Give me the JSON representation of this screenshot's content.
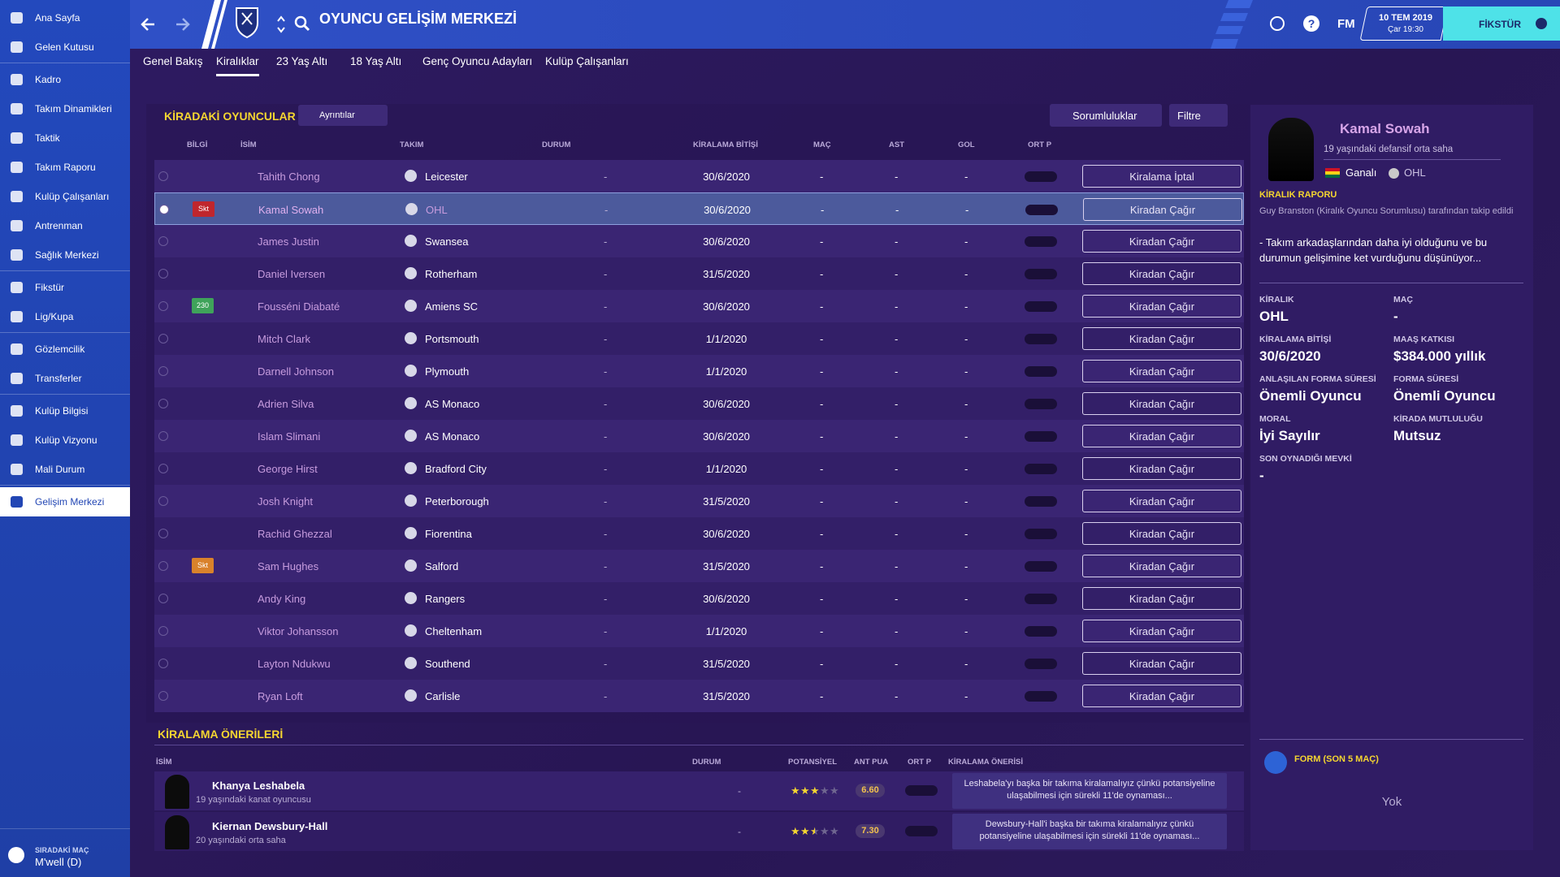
{
  "sidebar": {
    "groups": [
      [
        "Ana Sayfa",
        "Gelen Kutusu"
      ],
      [
        "Kadro",
        "Takım Dinamikleri",
        "Taktik",
        "Takım Raporu",
        "Kulüp Çalışanları",
        "Antrenman",
        "Sağlık Merkezi"
      ],
      [
        "Fikstür",
        "Lig/Kupa"
      ],
      [
        "Gözlemcilik",
        "Transferler"
      ],
      [
        "Kulüp Bilgisi",
        "Kulüp Vizyonu",
        "Mali Durum"
      ],
      [
        "Gelişim Merkezi"
      ]
    ],
    "next_match_label": "SIRADAKİ MAÇ",
    "next_match": "M'well (D)"
  },
  "topbar": {
    "title": "OYUNCU GELİŞİM MERKEZİ",
    "logo": "FM",
    "date": "10 TEM 2019",
    "time": "Çar 19:30",
    "button": "FİKSTÜR"
  },
  "tabs": [
    "Genel Bakış",
    "Kiralıklar",
    "23 Yaş Altı",
    "18 Yaş Altı",
    "Genç Oyuncu Adayları",
    "Kulüp Çalışanları"
  ],
  "loans": {
    "title": "KİRADAKİ OYUNCULAR",
    "details_button": "Ayrıntılar",
    "responsibilities_button": "Sorumluluklar",
    "filter_button": "Filtre",
    "columns": [
      "BİLGİ",
      "İSİM",
      "TAKIM",
      "DURUM",
      "KİRALAMA BİTİŞİ",
      "MAÇ",
      "AST",
      "GOL",
      "ORT P"
    ],
    "rows": [
      {
        "name": "Tahith Chong",
        "team": "Leicester",
        "status": "-",
        "end": "30/6/2020",
        "apps": "-",
        "assists": "-",
        "goals": "-",
        "action": "Kiralama İptal"
      },
      {
        "badge": "Skt",
        "badge_color": "#c0262d",
        "selected": true,
        "name": "Kamal Sowah",
        "team": "OHL",
        "status": "-",
        "end": "30/6/2020",
        "apps": "-",
        "assists": "-",
        "goals": "-",
        "action": "Kiradan Çağır"
      },
      {
        "name": "James Justin",
        "team": "Swansea",
        "status": "-",
        "end": "30/6/2020",
        "apps": "-",
        "assists": "-",
        "goals": "-",
        "action": "Kiradan Çağır"
      },
      {
        "name": "Daniel Iversen",
        "team": "Rotherham",
        "status": "-",
        "end": "31/5/2020",
        "apps": "-",
        "assists": "-",
        "goals": "-",
        "action": "Kiradan Çağır"
      },
      {
        "badge": "230",
        "badge_color": "#3fa35a",
        "name": "Fousséni Diabaté",
        "team": "Amiens SC",
        "status": "-",
        "end": "30/6/2020",
        "apps": "-",
        "assists": "-",
        "goals": "-",
        "action": "Kiradan Çağır"
      },
      {
        "name": "Mitch Clark",
        "team": "Portsmouth",
        "status": "-",
        "end": "1/1/2020",
        "apps": "-",
        "assists": "-",
        "goals": "-",
        "action": "Kiradan Çağır"
      },
      {
        "name": "Darnell Johnson",
        "team": "Plymouth",
        "status": "-",
        "end": "1/1/2020",
        "apps": "-",
        "assists": "-",
        "goals": "-",
        "action": "Kiradan Çağır"
      },
      {
        "name": "Adrien Silva",
        "team": "AS Monaco",
        "status": "-",
        "end": "30/6/2020",
        "apps": "-",
        "assists": "-",
        "goals": "-",
        "action": "Kiradan Çağır"
      },
      {
        "name": "Islam Slimani",
        "team": "AS Monaco",
        "status": "-",
        "end": "30/6/2020",
        "apps": "-",
        "assists": "-",
        "goals": "-",
        "action": "Kiradan Çağır"
      },
      {
        "name": "George Hirst",
        "team": "Bradford City",
        "status": "-",
        "end": "1/1/2020",
        "apps": "-",
        "assists": "-",
        "goals": "-",
        "action": "Kiradan Çağır"
      },
      {
        "name": "Josh Knight",
        "team": "Peterborough",
        "status": "-",
        "end": "31/5/2020",
        "apps": "-",
        "assists": "-",
        "goals": "-",
        "action": "Kiradan Çağır"
      },
      {
        "name": "Rachid Ghezzal",
        "team": "Fiorentina",
        "status": "-",
        "end": "30/6/2020",
        "apps": "-",
        "assists": "-",
        "goals": "-",
        "action": "Kiradan Çağır"
      },
      {
        "badge": "Skt",
        "badge_color": "#d9822b",
        "name": "Sam Hughes",
        "team": "Salford",
        "status": "-",
        "end": "31/5/2020",
        "apps": "-",
        "assists": "-",
        "goals": "-",
        "action": "Kiradan Çağır"
      },
      {
        "name": "Andy King",
        "team": "Rangers",
        "status": "-",
        "end": "30/6/2020",
        "apps": "-",
        "assists": "-",
        "goals": "-",
        "action": "Kiradan Çağır"
      },
      {
        "name": "Viktor Johansson",
        "team": "Cheltenham",
        "status": "-",
        "end": "1/1/2020",
        "apps": "-",
        "assists": "-",
        "goals": "-",
        "action": "Kiradan Çağır"
      },
      {
        "name": "Layton Ndukwu",
        "team": "Southend",
        "status": "-",
        "end": "31/5/2020",
        "apps": "-",
        "assists": "-",
        "goals": "-",
        "action": "Kiradan Çağır"
      },
      {
        "name": "Ryan Loft",
        "team": "Carlisle",
        "status": "-",
        "end": "31/5/2020",
        "apps": "-",
        "assists": "-",
        "goals": "-",
        "action": "Kiradan Çağır"
      }
    ]
  },
  "recommendations": {
    "title": "KİRALAMA ÖNERİLERİ",
    "columns": [
      "İSİM",
      "DURUM",
      "POTANSİYEL",
      "ANT PUA",
      "ORT P",
      "KİRALAMA ÖNERİSİ"
    ],
    "rows": [
      {
        "name": "Khanya Leshabela",
        "description": "19 yaşındaki kanat oyuncusu",
        "status": "-",
        "potential_stars": 3,
        "rating": "6.60",
        "suggestion": "Leshabela'yı başka bir takıma kiralamalıyız çünkü potansiyeline ulaşabilmesi için sürekli 11'de oynaması..."
      },
      {
        "name": "Kiernan Dewsbury-Hall",
        "description": "20 yaşındaki orta saha",
        "status": "-",
        "potential_stars": 2.5,
        "rating": "7.30",
        "suggestion": "Dewsbury-Hall'i başka bir takıma kiralamalıyız çünkü potansiyeline ulaşabilmesi için sürekli 11'de oynaması..."
      }
    ]
  },
  "player_panel": {
    "name": "Kamal Sowah",
    "subtitle": "19 yaşındaki defansif orta saha",
    "nationality": "Ganalı",
    "club": "OHL",
    "report_title": "KİRALIK RAPORU",
    "report_author": "Guy Branston (Kiralık Oyuncu Sorumlusu) tarafından takip edildi",
    "report_text": "- Takım arkadaşlarından daha iyi olduğunu ve bu durumun gelişimine ket vurduğunu düşünüyor...",
    "fields": [
      {
        "label": "KİRALIK",
        "value": "OHL"
      },
      {
        "label": "MAÇ",
        "value": "-"
      },
      {
        "label": "KİRALAMA BİTİŞİ",
        "value": "30/6/2020"
      },
      {
        "label": "MAAŞ KATKISI",
        "value": "$384.000 yıllık"
      },
      {
        "label": "ANLAŞILAN FORMA SÜRESİ",
        "value": "Önemli Oyuncu"
      },
      {
        "label": "FORMA SÜRESİ",
        "value": "Önemli Oyuncu"
      },
      {
        "label": "MORAL",
        "value": "İyi Sayılır"
      },
      {
        "label": "KİRADA MUTLULUĞU",
        "value": "Mutsuz"
      },
      {
        "label": "SON OYNADIĞI MEVKİ",
        "value": "-"
      }
    ],
    "form_title": "FORM (SON 5 MAÇ)",
    "form_value": "Yok"
  }
}
